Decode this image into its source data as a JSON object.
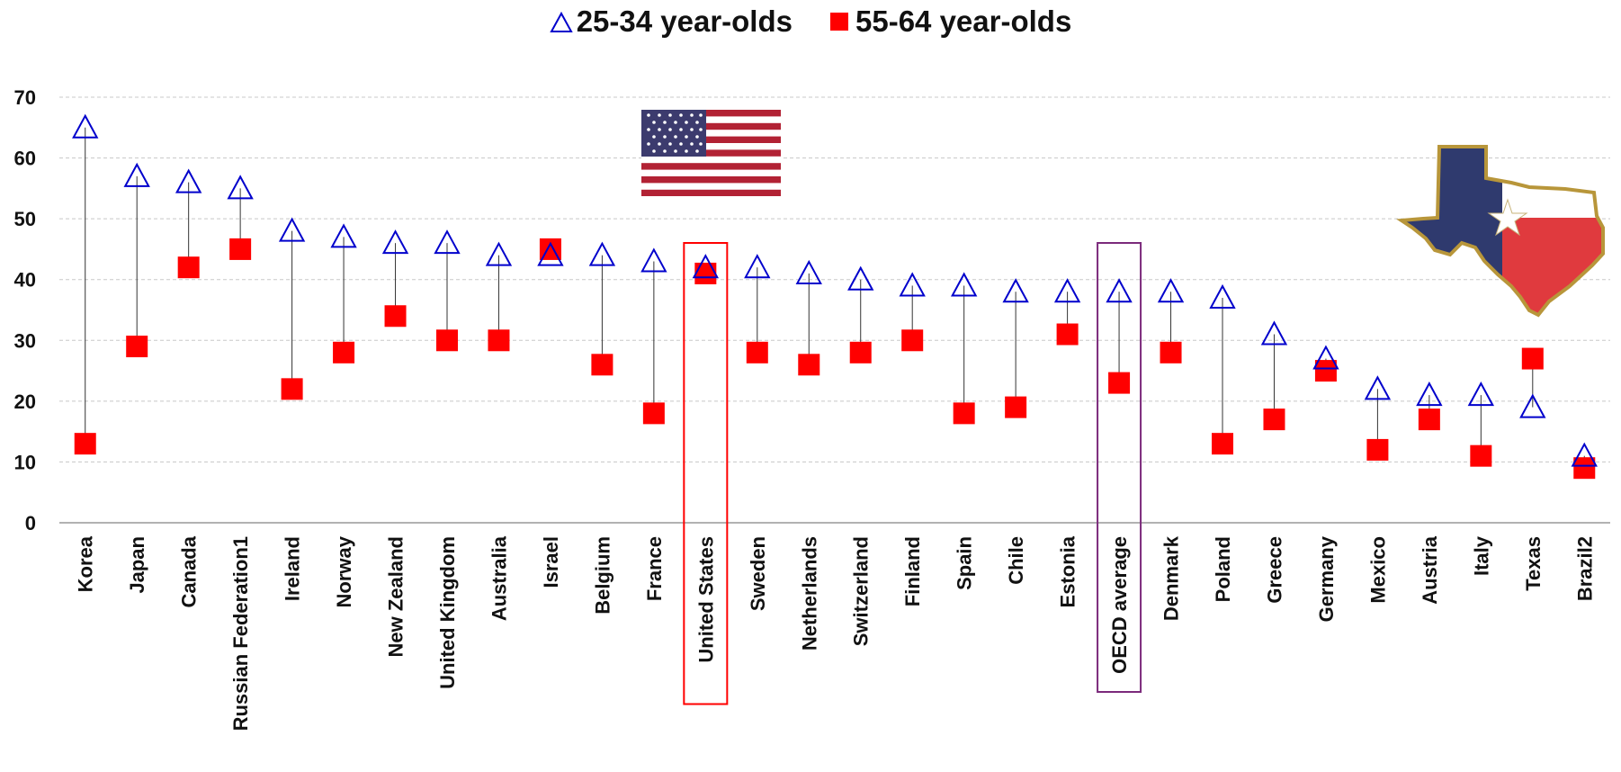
{
  "chart_data": {
    "type": "scatter",
    "title": "",
    "xlabel": "",
    "ylabel": "",
    "ylim": [
      0,
      70
    ],
    "yticks": [
      0,
      10,
      20,
      30,
      40,
      50,
      60,
      70
    ],
    "grid": "horizontal dashed",
    "legend_position": "top-center",
    "categories": [
      "Korea",
      "Japan",
      "Canada",
      "Russian Federation1",
      "Ireland",
      "Norway",
      "New Zealand",
      "United Kingdom",
      "Australia",
      "Israel",
      "Belgium",
      "France",
      "United States",
      "Sweden",
      "Netherlands",
      "Switzerland",
      "Finland",
      "Spain",
      "Chile",
      "Estonia",
      "OECD average",
      "Denmark",
      "Poland",
      "Greece",
      "Germany",
      "Mexico",
      "Austria",
      "Italy",
      "Texas",
      "Brazil2"
    ],
    "series": [
      {
        "name": "25-34 year-olds",
        "marker": "triangle-open",
        "color": "#0000cc",
        "values": [
          65,
          57,
          56,
          55,
          48,
          47,
          46,
          46,
          44,
          44,
          44,
          43,
          42,
          42,
          41,
          40,
          39,
          39,
          38,
          38,
          38,
          38,
          37,
          31,
          27,
          22,
          21,
          21,
          19,
          11
        ]
      },
      {
        "name": "55-64 year-olds",
        "marker": "square-filled",
        "color": "#ff0000",
        "values": [
          13,
          29,
          42,
          45,
          22,
          28,
          34,
          30,
          30,
          45,
          26,
          18,
          41,
          28,
          26,
          28,
          30,
          18,
          19,
          31,
          23,
          28,
          13,
          17,
          25,
          12,
          17,
          11,
          27,
          9
        ]
      }
    ],
    "highlights": [
      {
        "category": "United States",
        "color": "#ff0000"
      },
      {
        "category": "OECD average",
        "color": "#7b2a7b"
      }
    ]
  },
  "legend": {
    "item1": "25-34 year-olds",
    "item2": "55-64 year-olds"
  },
  "decorations": {
    "flag": "us-flag-icon",
    "state_shape": "texas-flag-map-icon"
  }
}
